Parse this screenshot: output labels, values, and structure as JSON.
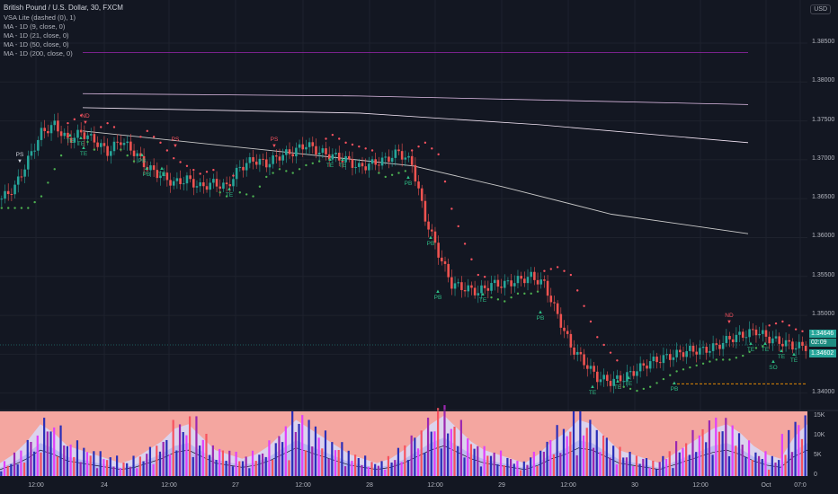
{
  "header": {
    "title": "British Pound / U.S. Dollar, 30, FXCM",
    "indicators": [
      "VSA Lite (dashed (0), 1)",
      "MA - 1D (9, close, 0)",
      "MA - 1D (21, close, 0)",
      "MA - 1D (50, close, 0)",
      "MA - 1D (200, close, 0)"
    ]
  },
  "currency": "USD",
  "price_axis": {
    "ticks": [
      "1.38500",
      "1.38000",
      "1.37500",
      "1.37000",
      "1.36500",
      "1.36000",
      "1.35500",
      "1.35000",
      "1.34500",
      "1.34000"
    ]
  },
  "price_boxes": {
    "bid": "1.34646",
    "countdown": "02:09",
    "ask": "1.34602"
  },
  "volume_axis": {
    "ticks": [
      "15K",
      "10K",
      "5K",
      "0"
    ]
  },
  "time_axis": {
    "ticks": [
      "12:00",
      "24",
      "12:00",
      "27",
      "12:00",
      "28",
      "12:00",
      "29",
      "12:00",
      "30",
      "12:00",
      "Oct",
      "07:0"
    ]
  },
  "signals": [
    {
      "label": "PS",
      "marker": "▼",
      "color": "white"
    },
    {
      "label": "ND",
      "marker": "▼",
      "color": "red"
    },
    {
      "label": "TE",
      "marker": "▲",
      "color": "green"
    },
    {
      "label": "TE",
      "marker": "▲",
      "color": "green"
    },
    {
      "label": "TE",
      "marker": "▲",
      "color": "green"
    },
    {
      "label": "PB",
      "marker": "▲",
      "color": "green"
    },
    {
      "label": "PB",
      "marker": "▲",
      "color": "green"
    },
    {
      "label": "PS",
      "marker": "▼",
      "color": "red"
    },
    {
      "label": "TE",
      "marker": "▲",
      "color": "green"
    },
    {
      "label": "PS",
      "marker": "▼",
      "color": "red"
    },
    {
      "label": "TE",
      "marker": "▲",
      "color": "green"
    },
    {
      "label": "TE",
      "marker": "▲",
      "color": "green"
    },
    {
      "label": "TE",
      "marker": "▲",
      "color": "green"
    },
    {
      "label": "PB",
      "marker": "▲",
      "color": "green"
    },
    {
      "label": "PB",
      "marker": "▲",
      "color": "green"
    },
    {
      "label": "PB",
      "marker": "▲",
      "color": "green"
    },
    {
      "label": "TE",
      "marker": "▲",
      "color": "green"
    },
    {
      "label": "PB",
      "marker": "▲",
      "color": "green"
    },
    {
      "label": "TE",
      "marker": "▲",
      "color": "green"
    },
    {
      "label": "TE",
      "marker": "▲",
      "color": "green"
    },
    {
      "label": "TE",
      "marker": "▲",
      "color": "green"
    },
    {
      "label": "PB",
      "marker": "▲",
      "color": "green"
    },
    {
      "label": "ND",
      "marker": "▼",
      "color": "red"
    },
    {
      "label": "TE",
      "marker": "▲",
      "color": "green"
    },
    {
      "label": "TE",
      "marker": "▲",
      "color": "green"
    },
    {
      "label": "TE",
      "marker": "▲",
      "color": "green"
    },
    {
      "label": "SO",
      "marker": "▲",
      "color": "green"
    },
    {
      "label": "TE",
      "marker": "▲",
      "color": "green"
    }
  ],
  "colors": {
    "background": "#131722",
    "up_candle": "#26a69a",
    "down_candle": "#ef5350",
    "ma_9": "#9c27b0",
    "ma_21": "#e1bee7",
    "ma_50": "#f3e5f5",
    "ma_200": "#ffffff",
    "support_line": "#ff9800"
  },
  "chart_data": {
    "type": "line",
    "series": [
      {
        "values": [
          1.365,
          1.3665,
          1.37,
          1.3735,
          1.3745,
          1.3725,
          1.3735,
          1.3725,
          1.371,
          1.3725,
          1.371,
          1.369,
          1.368,
          1.367,
          1.3675,
          1.3665,
          1.367,
          1.3665,
          1.369,
          1.37,
          1.3695,
          1.3705,
          1.371,
          1.372,
          1.371,
          1.3705,
          1.37,
          1.369,
          1.3695,
          1.37,
          1.371,
          1.3695,
          1.3625,
          1.358,
          1.354,
          1.3535,
          1.353,
          1.354,
          1.354,
          1.3545,
          1.355,
          1.354,
          1.35,
          1.346,
          1.344,
          1.342,
          1.3415,
          1.342,
          1.343,
          1.344,
          1.3445,
          1.345,
          1.3455,
          1.3455,
          1.346,
          1.347,
          1.3475,
          1.348,
          1.347,
          1.3465,
          1.346
        ]
      }
    ],
    "ylim": [
      1.338,
      1.388
    ]
  },
  "volume_data": {
    "values": [
      3,
      5,
      8,
      12,
      10,
      7,
      6,
      5,
      4,
      3,
      4,
      6,
      8,
      11,
      12,
      9,
      6,
      5,
      4,
      5,
      7,
      10,
      13,
      11,
      9,
      7,
      5,
      4,
      3,
      4,
      6,
      9,
      12,
      14,
      11,
      8,
      6,
      5,
      4,
      3,
      5,
      8,
      10,
      13,
      12,
      9,
      6,
      5,
      4,
      3,
      5,
      7,
      9,
      11,
      12,
      10,
      7,
      5,
      4,
      9,
      12
    ]
  }
}
